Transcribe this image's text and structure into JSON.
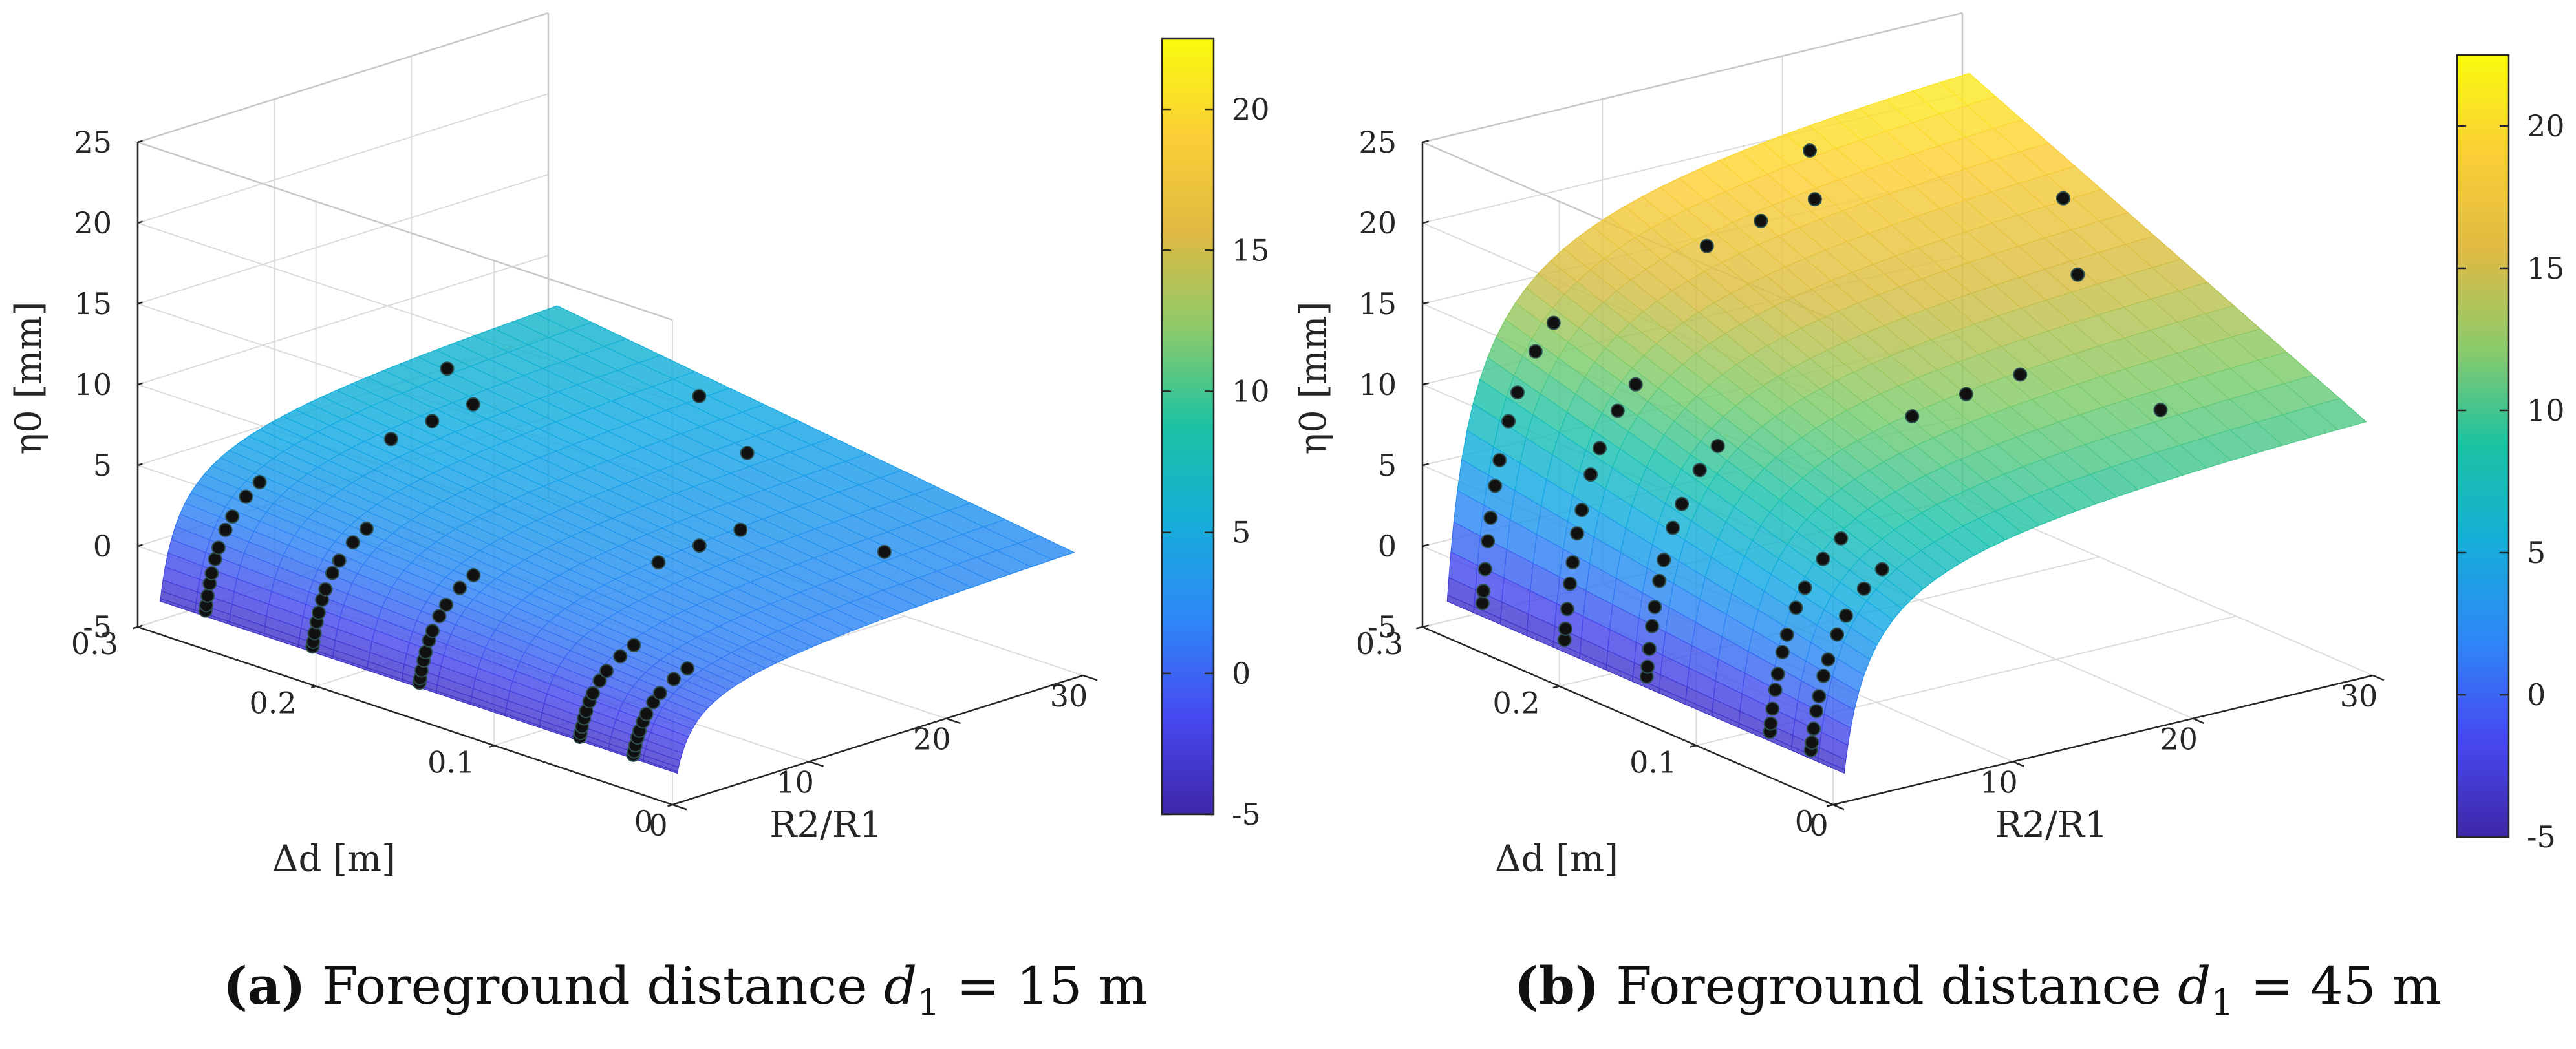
{
  "chart_data": [
    {
      "type": "surface3d",
      "panel": "a",
      "caption_label": "(a)",
      "caption_text": "Foreground distance",
      "caption_var": "d",
      "caption_sub": "1",
      "caption_value": "= 15 m",
      "zlabel": "η0 [mm]",
      "ylabel": "Δd [m]",
      "xlabel": "R2/R1",
      "xlim": [
        0,
        30
      ],
      "ylim": [
        0,
        0.3
      ],
      "zlim": [
        -5,
        25
      ],
      "xticks": [
        "0",
        "10",
        "20",
        "30"
      ],
      "yticks": [
        "0",
        "0.1",
        "0.2",
        "0.3"
      ],
      "zticks": [
        "-5",
        "0",
        "5",
        "10",
        "15",
        "20",
        "25"
      ],
      "colorbar_ticks": [
        "-5",
        "0",
        "5",
        "10",
        "15",
        "20"
      ],
      "colorbar_range": [
        -5,
        22.5
      ],
      "surface_max": 7.5,
      "sample_ratios": [
        1.05,
        1.1,
        1.2,
        1.35,
        1.5,
        1.75,
        2,
        2.5,
        3,
        4,
        5
      ],
      "sample_deltas": [
        0.03,
        0.06,
        0.15,
        0.21,
        0.27
      ],
      "far_points": [
        [
          12,
          0.25
        ],
        [
          15,
          0.25
        ],
        [
          18,
          0.25
        ],
        [
          12,
          0.1
        ],
        [
          18,
          0.1
        ],
        [
          15,
          0.1
        ],
        [
          22,
          0.05
        ],
        [
          25,
          0.15
        ],
        [
          28,
          0.2
        ],
        [
          20,
          0.28
        ]
      ]
    },
    {
      "type": "surface3d",
      "panel": "b",
      "caption_label": "(b)",
      "caption_text": "Foreground distance",
      "caption_var": "d",
      "caption_sub": "1",
      "caption_value": "= 45 m",
      "zlabel": "η0 [mm]",
      "ylabel": "Δd [m]",
      "xlabel": "R2/R1",
      "xlim": [
        0,
        30
      ],
      "ylim": [
        0,
        0.3
      ],
      "zlim": [
        -5,
        25
      ],
      "xticks": [
        "0",
        "10",
        "20",
        "30"
      ],
      "yticks": [
        "0",
        "0.1",
        "0.2",
        "0.3"
      ],
      "zticks": [
        "-5",
        "0",
        "5",
        "10",
        "15",
        "20",
        "25"
      ],
      "colorbar_ticks": [
        "-5",
        "0",
        "5",
        "10",
        "15",
        "20"
      ],
      "colorbar_range": [
        -5,
        22.5
      ],
      "surface_max": 22.5,
      "sample_ratios": [
        1.05,
        1.1,
        1.2,
        1.35,
        1.5,
        1.75,
        2,
        2.5,
        3,
        4,
        5
      ],
      "sample_deltas": [
        0.03,
        0.06,
        0.15,
        0.21,
        0.27
      ],
      "far_points": [
        [
          12,
          0.25
        ],
        [
          15,
          0.25
        ],
        [
          18,
          0.25
        ],
        [
          12,
          0.1
        ],
        [
          18,
          0.1
        ],
        [
          15,
          0.1
        ],
        [
          22,
          0.05
        ],
        [
          25,
          0.15
        ],
        [
          28,
          0.2
        ],
        [
          20,
          0.28
        ]
      ]
    }
  ]
}
